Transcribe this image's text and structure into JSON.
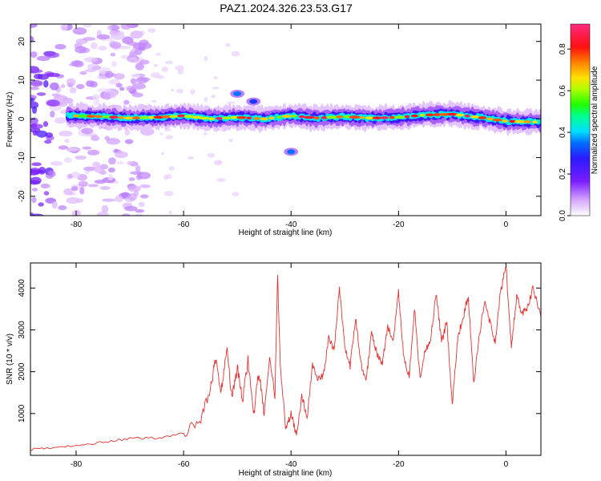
{
  "title": "PAZ1.2024.326.23.53.G17",
  "chart_data": [
    {
      "type": "heatmap",
      "xlabel": "Height of straight line (km)",
      "ylabel": "Frequency (Hz)",
      "xlim": [
        -88.5,
        6.5
      ],
      "ylim": [
        -25,
        24.5
      ],
      "xticks": [
        -80,
        -60,
        -40,
        -20,
        0
      ],
      "yticks": [
        -20,
        -10,
        0,
        10,
        20
      ],
      "colorbar": {
        "label": "Normalized spectral amplitude",
        "range": [
          0,
          0.92
        ],
        "ticks": [
          0.0,
          0.2,
          0.4,
          0.6,
          0.8
        ],
        "colormap": "white-purple-blue-cyan-green-yellow-orange-red-pink"
      },
      "ridge": {
        "description_free": true,
        "points": [
          {
            "x": -81,
            "y": 0.8
          },
          {
            "x": -75,
            "y": 0.6
          },
          {
            "x": -70,
            "y": 0.2
          },
          {
            "x": -65,
            "y": 0.4
          },
          {
            "x": -60,
            "y": 0.8
          },
          {
            "x": -55,
            "y": 0.0
          },
          {
            "x": -50,
            "y": 0.4
          },
          {
            "x": -45,
            "y": 0.0
          },
          {
            "x": -40,
            "y": 0.8
          },
          {
            "x": -35,
            "y": 0.2
          },
          {
            "x": -30,
            "y": 0.6
          },
          {
            "x": -25,
            "y": 0.2
          },
          {
            "x": -20,
            "y": 0.4
          },
          {
            "x": -15,
            "y": 1.0
          },
          {
            "x": -10,
            "y": 1.2
          },
          {
            "x": -5,
            "y": 0.4
          },
          {
            "x": 0,
            "y": -0.6
          },
          {
            "x": 5,
            "y": -0.8
          }
        ]
      },
      "secondary_features": [
        {
          "x": -50,
          "y": 6.5,
          "amplitude": 0.35
        },
        {
          "x": -47,
          "y": 4.5,
          "amplitude": 0.3
        },
        {
          "x": -40,
          "y": -8.5,
          "amplitude": 0.35
        }
      ]
    },
    {
      "type": "line",
      "xlabel": "Height of straight line (km)",
      "ylabel": "SNR (10 * v/v)",
      "xlim": [
        -88.5,
        6.5
      ],
      "ylim": [
        0,
        4600
      ],
      "xticks": [
        -80,
        -60,
        -40,
        -20,
        0
      ],
      "yticks": [
        1000,
        2000,
        3000,
        4000
      ],
      "color": "#e83030",
      "series": [
        {
          "x": [
            -88.5,
            -85,
            -80,
            -75,
            -70,
            -65,
            -60,
            -57,
            -55,
            -54,
            -53,
            -52,
            -51,
            -50,
            -49,
            -48,
            -47,
            -46,
            -45,
            -44,
            -43,
            -42.5,
            -42,
            -41,
            -40,
            -39,
            -38,
            -37,
            -36,
            -35,
            -34,
            -33,
            -32,
            -31,
            -30,
            -29,
            -28,
            -27,
            -26,
            -25,
            -24,
            -23,
            -22,
            -21,
            -20,
            -19,
            -18,
            -17,
            -16,
            -15,
            -14,
            -13,
            -12,
            -11,
            -10,
            -9,
            -8,
            -7,
            -6,
            -5,
            -4,
            -3,
            -2,
            -1,
            0,
            1,
            2,
            3,
            4,
            5,
            6.5
          ],
          "values": [
            150,
            180,
            220,
            320,
            400,
            420,
            520,
            800,
            1600,
            2300,
            1500,
            2600,
            1400,
            2100,
            1300,
            2300,
            900,
            2000,
            1000,
            2300,
            1400,
            4300,
            2200,
            600,
            1000,
            500,
            1400,
            900,
            2200,
            1800,
            1900,
            2800,
            2500,
            4000,
            2600,
            2100,
            3300,
            2200,
            1800,
            3000,
            2400,
            2200,
            3100,
            2700,
            3900,
            2300,
            1900,
            3500,
            1800,
            2500,
            2800,
            3900,
            2700,
            3200,
            1200,
            2800,
            3300,
            3800,
            1700,
            2800,
            3700,
            3200,
            2700,
            3900,
            4550,
            2600,
            3800,
            3400,
            3500,
            4000,
            3300
          ]
        }
      ]
    }
  ]
}
